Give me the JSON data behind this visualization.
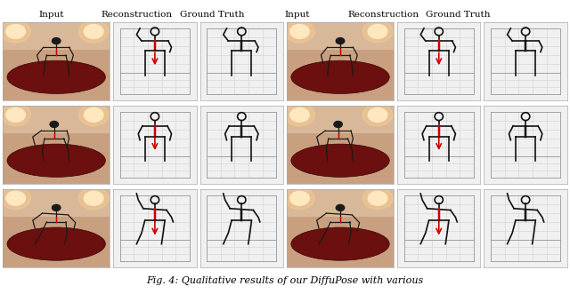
{
  "caption_text": "Fig. 4: Qualitative results of our DiffuPose with various",
  "col_headers_left": [
    "Input",
    "Reconstruction",
    "Ground Truth"
  ],
  "col_headers_right": [
    "Input",
    "Reconstruction",
    "Ground Truth"
  ],
  "background_color": "#ffffff",
  "fig_width": 6.4,
  "fig_height": 3.31,
  "dpi": 100,
  "caption_fontsize": 8.0,
  "header_fontsize": 7.5,
  "skeleton_color_black": "#111111",
  "skeleton_color_red": "#cc0000",
  "photo_bg_color": "#c8a080",
  "photo_floor_color": "#6b0f0f",
  "photo_light_color": "#f0d0a0",
  "grid_color": "#d0d0d0",
  "box_edge_color": "#999999",
  "cell_bg": "#f0f0f0"
}
